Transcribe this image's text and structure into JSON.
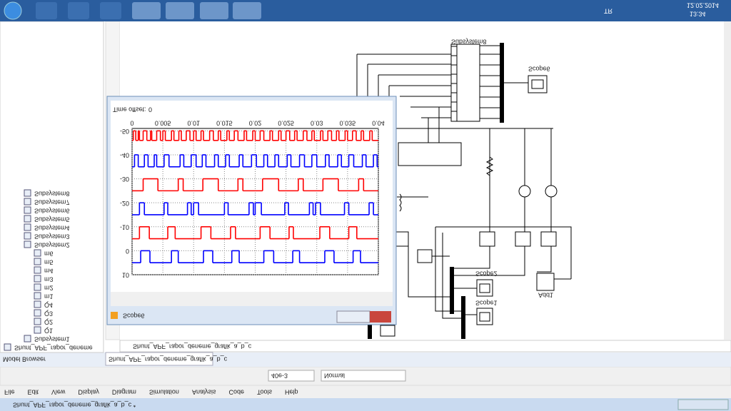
{
  "window_title": "Shunt_APF_rapor_deneme_grafik_a_b_c *",
  "menu": [
    "File",
    "Edit",
    "View",
    "Display",
    "Diagram",
    "Simulation",
    "Analysis",
    "Code",
    "Tools",
    "Help"
  ],
  "toolbar": {
    "stop_time": "40e-3",
    "mode": "Normal"
  },
  "tabs": {
    "browser": "Model Browser",
    "model_tab": "Shunt_APF_rapor_deneme_grafik_a_b_c",
    "address": "Shunt_APF_rapor_deneme_grafik_a_b_c"
  },
  "tree": [
    "Shunt_APF_rapor_deneme",
    "Subsystem1",
    "Q1",
    "Q2",
    "Q3",
    "Q4",
    "m1",
    "m2",
    "m3",
    "m4",
    "m5",
    "m6",
    "Subsystem2",
    "Subsystem3",
    "Subsystem4",
    "Subsystem5",
    "Subsystem6",
    "Subsystem7",
    "Subsystem8"
  ],
  "diagram": {
    "subsystem": "Subsystem8",
    "scope6": "Scope6",
    "scope2": "Scope2",
    "scope1": "Scope1",
    "add": "Add1"
  },
  "taskbar": {
    "lang": "TR",
    "time": "13:34",
    "date": "12.02.2014"
  },
  "scope": {
    "title": "Scope6",
    "time_offset_label": "Time offset:",
    "time_offset": 0
  },
  "chart_data": {
    "type": "line",
    "xlim": [
      0,
      0.04
    ],
    "xticks": [
      0,
      0.005,
      0.01,
      0.015,
      0.02,
      0.025,
      0.03,
      0.035,
      0.04
    ],
    "ylim": [
      -51,
      10
    ],
    "yticks": [
      10,
      0,
      -10,
      -20,
      -30,
      -40,
      -50
    ],
    "grid": true,
    "series": [
      {
        "color": "#0000ff",
        "x": [
          0,
          0.0014,
          0.0029,
          0.0064,
          0.0075,
          0.0116,
          0.0131,
          0.0162,
          0.0174,
          0.0214,
          0.023,
          0.0261,
          0.0272,
          0.0313,
          0.0328,
          0.0359,
          0.0371,
          0.04
        ],
        "values": [
          5,
          0,
          5,
          0,
          5,
          0,
          5,
          0,
          5,
          0,
          5,
          0,
          5,
          0,
          5,
          0,
          5,
          5
        ]
      },
      {
        "color": "#ff0000",
        "x": [
          0,
          0.0012,
          0.0028,
          0.0058,
          0.007,
          0.0112,
          0.0128,
          0.016,
          0.0168,
          0.0208,
          0.0224,
          0.0255,
          0.0262,
          0.0305,
          0.0321,
          0.0352,
          0.0365,
          0.04
        ],
        "values": [
          -5,
          -10,
          -5,
          -10,
          -5,
          -10,
          -5,
          -10,
          -5,
          -10,
          -5,
          -10,
          -5,
          -10,
          -5,
          -10,
          -5,
          -5
        ]
      },
      {
        "color": "#0000ff",
        "x": [
          0,
          0.0012,
          0.002,
          0.0052,
          0.0058,
          0.009,
          0.0096,
          0.01,
          0.0108,
          0.015,
          0.0156,
          0.019,
          0.0197,
          0.02,
          0.021,
          0.0248,
          0.0254,
          0.0288,
          0.0294,
          0.0298,
          0.0306,
          0.0345,
          0.0352,
          0.0385,
          0.0392,
          0.04
        ],
        "values": [
          -15,
          -20,
          -15,
          -20,
          -15,
          -20,
          -15,
          -20,
          -15,
          -20,
          -15,
          -20,
          -15,
          -20,
          -15,
          -20,
          -15,
          -20,
          -15,
          -20,
          -15,
          -20,
          -15,
          -20,
          -15,
          -15
        ]
      },
      {
        "color": "#ff0000",
        "x": [
          0,
          0.0018,
          0.0042,
          0.0075,
          0.0083,
          0.0115,
          0.014,
          0.0172,
          0.018,
          0.0212,
          0.0238,
          0.027,
          0.0278,
          0.031,
          0.0335,
          0.0368,
          0.0376,
          0.04
        ],
        "values": [
          -25,
          -30,
          -25,
          -30,
          -25,
          -30,
          -25,
          -30,
          -25,
          -30,
          -25,
          -30,
          -25,
          -30,
          -25,
          -30,
          -25,
          -25
        ]
      },
      {
        "color": "#0000ff",
        "x": [
          0,
          0.0004,
          0.001,
          0.002,
          0.0026,
          0.0036,
          0.004,
          0.0052,
          0.006,
          0.0078,
          0.0084,
          0.0096,
          0.0104,
          0.0114,
          0.012,
          0.0134,
          0.014,
          0.0152,
          0.0158,
          0.0174,
          0.018,
          0.0194,
          0.0202,
          0.0214,
          0.022,
          0.0232,
          0.0238,
          0.0252,
          0.0258,
          0.0272,
          0.028,
          0.0292,
          0.03,
          0.0314,
          0.032,
          0.0334,
          0.034,
          0.0352,
          0.036,
          0.0374,
          0.038,
          0.0392,
          0.0398,
          0.04
        ],
        "values": [
          -35,
          -40,
          -35,
          -40,
          -35,
          -40,
          -35,
          -40,
          -35,
          -40,
          -35,
          -40,
          -35,
          -40,
          -35,
          -40,
          -35,
          -40,
          -35,
          -40,
          -35,
          -40,
          -35,
          -40,
          -35,
          -40,
          -35,
          -40,
          -35,
          -40,
          -35,
          -40,
          -35,
          -40,
          -35,
          -40,
          -35,
          -40,
          -35,
          -40,
          -35,
          -40,
          -35,
          -35
        ]
      },
      {
        "color": "#ff0000",
        "x": [
          0,
          0.0002,
          0.0006,
          0.001,
          0.0012,
          0.0018,
          0.0024,
          0.003,
          0.0032,
          0.004,
          0.0046,
          0.005,
          0.0054,
          0.0064,
          0.0068,
          0.0076,
          0.008,
          0.0088,
          0.0094,
          0.01,
          0.0104,
          0.0112,
          0.0116,
          0.0126,
          0.0132,
          0.014,
          0.0144,
          0.0154,
          0.0158,
          0.0166,
          0.0172,
          0.0182,
          0.0186,
          0.0196,
          0.02,
          0.0208,
          0.0214,
          0.0224,
          0.0228,
          0.0238,
          0.0242,
          0.025,
          0.0256,
          0.0264,
          0.0268,
          0.0278,
          0.0284,
          0.0292,
          0.0296,
          0.0306,
          0.031,
          0.0318,
          0.0324,
          0.0332,
          0.0336,
          0.0346,
          0.035,
          0.0358,
          0.0364,
          0.0372,
          0.0376,
          0.0386,
          0.039,
          0.04
        ],
        "values": [
          -46,
          -50,
          -46,
          -50,
          -46,
          -50,
          -46,
          -50,
          -46,
          -50,
          -46,
          -50,
          -46,
          -50,
          -46,
          -50,
          -46,
          -50,
          -46,
          -50,
          -46,
          -50,
          -46,
          -50,
          -46,
          -50,
          -46,
          -50,
          -46,
          -50,
          -46,
          -50,
          -46,
          -50,
          -46,
          -50,
          -46,
          -50,
          -46,
          -50,
          -46,
          -50,
          -46,
          -50,
          -46,
          -50,
          -46,
          -50,
          -46,
          -50,
          -46,
          -50,
          -46,
          -50,
          -46,
          -50,
          -46,
          -50,
          -46,
          -50,
          -46,
          -50,
          -46,
          -46
        ]
      }
    ]
  }
}
